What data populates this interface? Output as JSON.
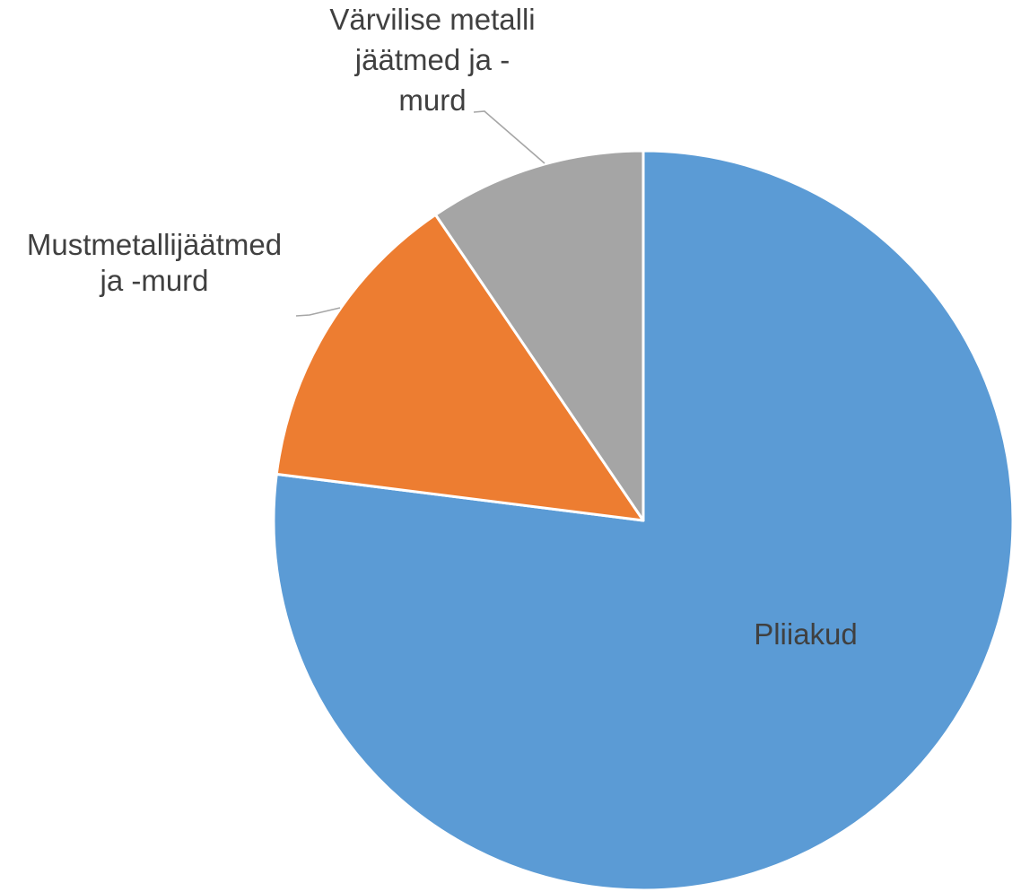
{
  "chart_data": {
    "type": "pie",
    "title": "",
    "slices": [
      {
        "label_lines": [
          "Pliiakud"
        ],
        "value": 77,
        "color": "#5b9bd5"
      },
      {
        "label_lines": [
          "Mustmetallijäätmed",
          "ja -murd"
        ],
        "value": 13.5,
        "color": "#ed7d31"
      },
      {
        "label_lines": [
          "Värvilise metalli",
          "jäätmed ja -",
          "murd"
        ],
        "value": 9.5,
        "color": "#a5a5a5"
      }
    ],
    "start_angle": "top (12 o'clock)",
    "direction": "clockwise",
    "legend": "none",
    "data_labels": "category names"
  }
}
